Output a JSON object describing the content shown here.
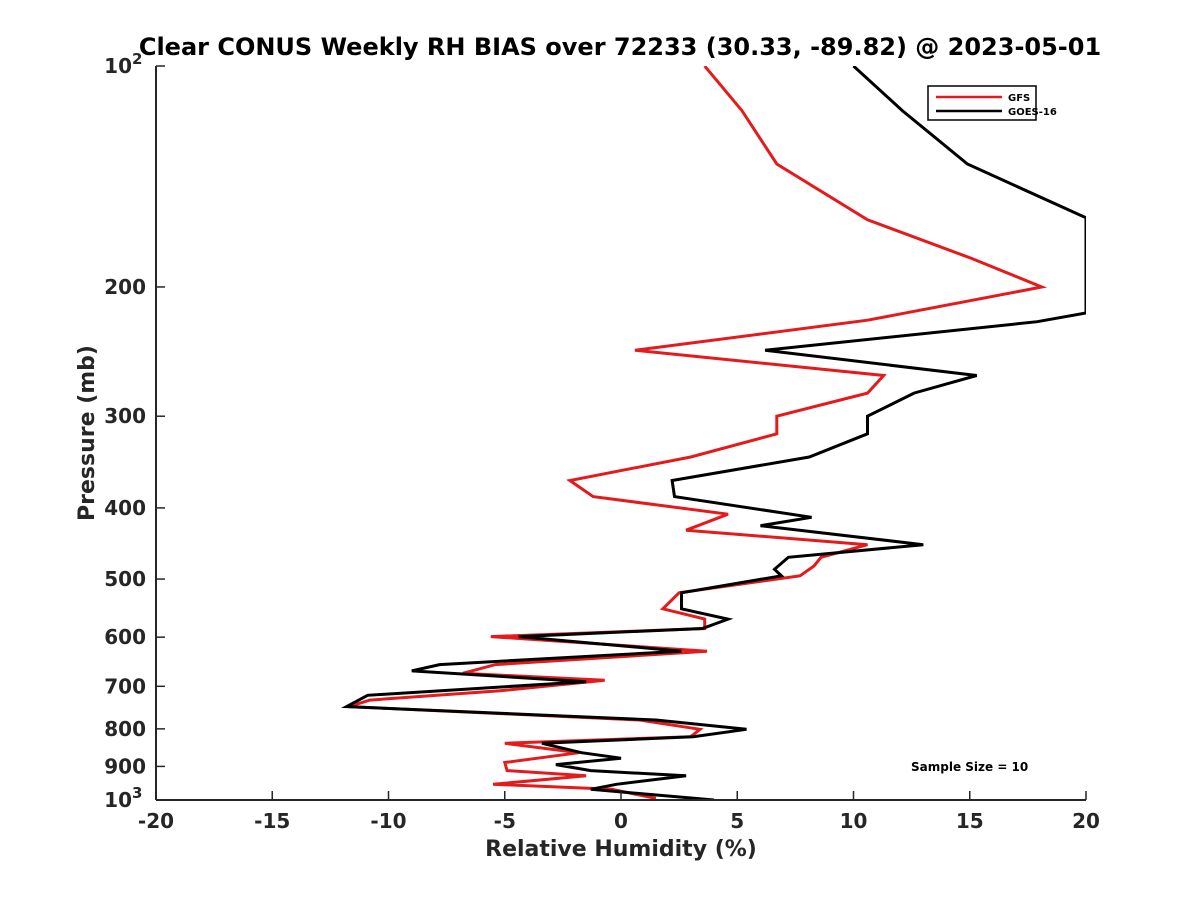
{
  "chart_data": {
    "type": "line",
    "title": "Clear CONUS Weekly RH BIAS over 72233 (30.33, -89.82) @ 2023-05-01",
    "xlabel": "Relative Humidity (%)",
    "ylabel": "Pressure (mb)",
    "xlim": [
      -20,
      20
    ],
    "ylim": [
      100,
      1000
    ],
    "y_scale": "log",
    "y_direction": "reversed",
    "grid": false,
    "legend_position": "top-right",
    "x_ticks": [
      -20,
      -15,
      -10,
      -5,
      0,
      5,
      10,
      15,
      20
    ],
    "x_tick_labels": [
      "-20",
      "-15",
      "-10",
      "-5",
      "0",
      "5",
      "10",
      "15",
      "20"
    ],
    "y_ticks": [
      {
        "value": 100,
        "base": "10",
        "exp": "2"
      },
      {
        "value": 200,
        "base": "200",
        "exp": ""
      },
      {
        "value": 300,
        "base": "300",
        "exp": ""
      },
      {
        "value": 400,
        "base": "400",
        "exp": ""
      },
      {
        "value": 500,
        "base": "500",
        "exp": ""
      },
      {
        "value": 600,
        "base": "600",
        "exp": ""
      },
      {
        "value": 700,
        "base": "700",
        "exp": ""
      },
      {
        "value": 800,
        "base": "800",
        "exp": ""
      },
      {
        "value": 900,
        "base": "900",
        "exp": ""
      },
      {
        "value": 1000,
        "base": "10",
        "exp": "3"
      }
    ],
    "annotation": "Sample Size = 10",
    "series": [
      {
        "name": "GFS",
        "color": "#e41a1c",
        "points": [
          [
            3.6,
            100
          ],
          [
            5.2,
            115
          ],
          [
            6.7,
            136
          ],
          [
            10.6,
            162
          ],
          [
            15.1,
            183
          ],
          [
            18.1,
            200
          ],
          [
            10.6,
            222
          ],
          [
            0.6,
            244
          ],
          [
            11.3,
            264
          ],
          [
            10.6,
            279
          ],
          [
            6.7,
            300
          ],
          [
            6.7,
            317
          ],
          [
            3.0,
            341
          ],
          [
            -2.2,
            367
          ],
          [
            -1.2,
            386
          ],
          [
            4.6,
            408
          ],
          [
            2.8,
            429
          ],
          [
            10.6,
            449
          ],
          [
            8.6,
            467
          ],
          [
            8.3,
            480
          ],
          [
            7.7,
            495
          ],
          [
            2.5,
            522
          ],
          [
            1.8,
            549
          ],
          [
            3.6,
            567
          ],
          [
            3.6,
            584
          ],
          [
            -5.6,
            599
          ],
          [
            3.7,
            627
          ],
          [
            -5.4,
            654
          ],
          [
            -6.8,
            672
          ],
          [
            -0.7,
            687
          ],
          [
            -5.2,
            710
          ],
          [
            -10.8,
            731
          ],
          [
            -11.7,
            746
          ],
          [
            0.8,
            778
          ],
          [
            3.4,
            801
          ],
          [
            3.0,
            820
          ],
          [
            -5.0,
            837
          ],
          [
            -1.8,
            862
          ],
          [
            -5.0,
            889
          ],
          [
            -4.9,
            912
          ],
          [
            -1.5,
            927
          ],
          [
            -5.5,
            952
          ],
          [
            -0.4,
            967
          ],
          [
            1.5,
            995
          ]
        ]
      },
      {
        "name": "GOES-16",
        "color": "#000000",
        "points": [
          [
            10.0,
            100
          ],
          [
            12.1,
            115
          ],
          [
            14.9,
            136
          ],
          [
            20.0,
            161
          ],
          [
            20.0,
            217
          ],
          [
            17.9,
            223
          ],
          [
            6.2,
            244
          ],
          [
            15.3,
            264
          ],
          [
            12.6,
            279
          ],
          [
            10.6,
            300
          ],
          [
            10.6,
            317
          ],
          [
            8.1,
            341
          ],
          [
            2.2,
            367
          ],
          [
            2.3,
            386
          ],
          [
            8.2,
            412
          ],
          [
            6.0,
            423
          ],
          [
            13.0,
            449
          ],
          [
            7.2,
            467
          ],
          [
            6.6,
            485
          ],
          [
            6.9,
            495
          ],
          [
            2.6,
            522
          ],
          [
            2.6,
            549
          ],
          [
            4.6,
            567
          ],
          [
            3.5,
            584
          ],
          [
            -4.4,
            599
          ],
          [
            2.6,
            627
          ],
          [
            -7.8,
            654
          ],
          [
            -9.0,
            667
          ],
          [
            -1.5,
            690
          ],
          [
            -10.9,
            720
          ],
          [
            -11.8,
            746
          ],
          [
            1.5,
            778
          ],
          [
            5.4,
            801
          ],
          [
            3.1,
            820
          ],
          [
            -3.4,
            837
          ],
          [
            -1.7,
            862
          ],
          [
            0.0,
            877
          ],
          [
            -2.8,
            895
          ],
          [
            -1.3,
            912
          ],
          [
            2.8,
            927
          ],
          [
            -0.2,
            952
          ],
          [
            -1.3,
            967
          ],
          [
            4.0,
            1000
          ]
        ]
      }
    ]
  }
}
